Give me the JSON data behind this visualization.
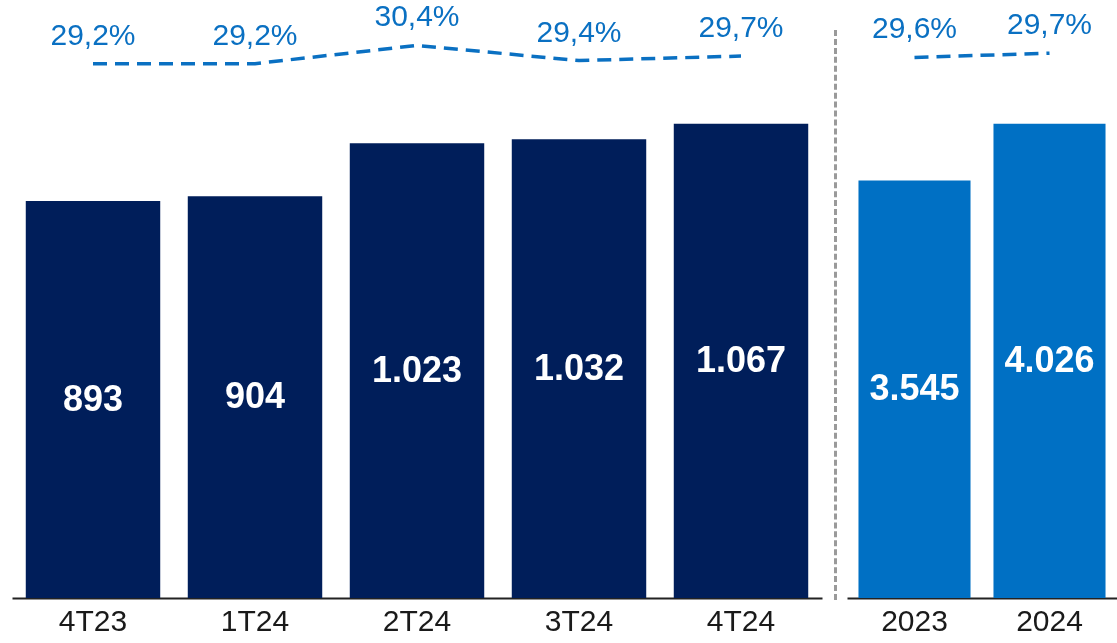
{
  "chart_data": [
    {
      "type": "line",
      "categories": [
        null,
        null,
        null,
        null,
        null
      ],
      "tick_labels": false,
      "color": "#0a70c2",
      "line_style": "dashed",
      "values": [
        29.2,
        29.2,
        30.4,
        29.4,
        29.7
      ],
      "value_labels": [
        "29,2%",
        "29,2%",
        "30,4%",
        "29,4%",
        "29,7%"
      ]
    },
    {
      "type": "bar",
      "categories": [
        "4T23",
        "1T24",
        "2T24",
        "3T24",
        "4T24"
      ],
      "tick_labels": "x",
      "color": "#001e5a",
      "values": [
        893,
        904,
        1023,
        1032,
        1067
      ],
      "value_labels": [
        "893",
        "904",
        "1.023",
        "1.032",
        "1.067"
      ]
    },
    {
      "type": "line",
      "categories": [
        null,
        null
      ],
      "tick_labels": false,
      "color": "#0a70c2",
      "line_style": "dashed",
      "values": [
        29.6,
        29.7
      ],
      "value_labels": [
        "29,6%",
        "29,7%"
      ]
    },
    {
      "type": "bar",
      "categories": [
        "2023",
        "2024"
      ],
      "tick_labels": "x",
      "color": "#0070c4",
      "values": [
        3545,
        4026
      ],
      "value_labels": [
        "3.545",
        "4.026"
      ]
    }
  ]
}
